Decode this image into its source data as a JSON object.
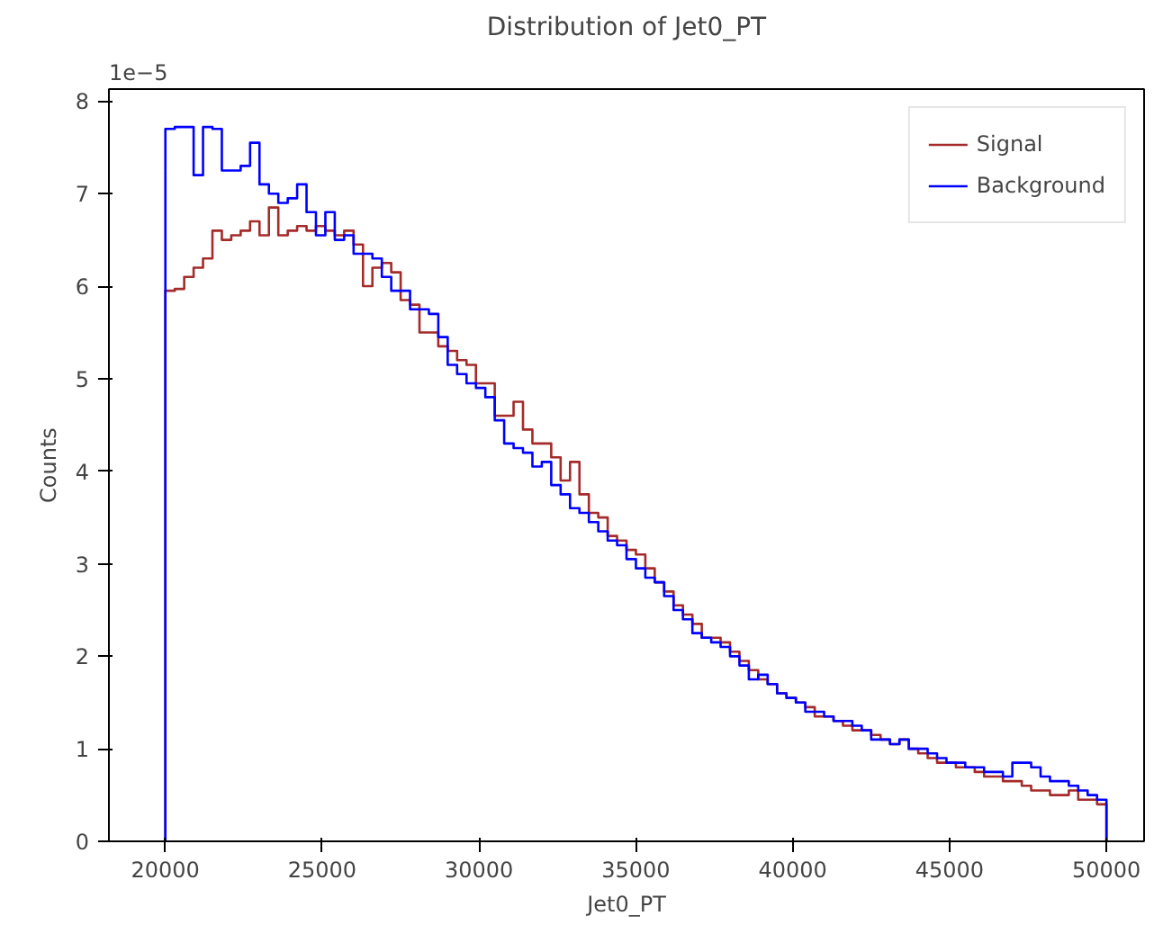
{
  "chart_data": {
    "type": "histogram",
    "title": "Distribution of Jet0_PT",
    "xlabel": "Jet0_PT",
    "ylabel": "Counts",
    "annotations": [
      "1e−5"
    ],
    "bins": [
      20000,
      20300,
      20600,
      20900,
      21200,
      21500,
      21800,
      22100,
      22400,
      22700,
      23000,
      23300,
      23600,
      23900,
      24200,
      24500,
      24800,
      25100,
      25400,
      25700,
      26000,
      26300,
      26600,
      26900,
      27200,
      27500,
      27800,
      28100,
      28400,
      28700,
      29000,
      29300,
      29600,
      29900,
      30200,
      30500,
      30800,
      31100,
      31400,
      31700,
      32000,
      32300,
      32600,
      32900,
      33200,
      33500,
      33800,
      34100,
      34400,
      34700,
      35000,
      35300,
      35600,
      35900,
      36200,
      36500,
      36800,
      37100,
      37400,
      37700,
      38000,
      38300,
      38600,
      38900,
      39200,
      39500,
      39800,
      40100,
      40400,
      40700,
      41000,
      41300,
      41600,
      41900,
      42200,
      42500,
      42800,
      43100,
      43400,
      43700,
      44000,
      44300,
      44600,
      44900,
      45200,
      45500,
      45800,
      46100,
      46400,
      46700,
      47000,
      47300,
      47600,
      47900,
      48200,
      48500,
      48800,
      49100,
      49400,
      49700,
      50000
    ],
    "series": [
      {
        "name": "Signal",
        "color": "#a52a2a",
        "values": [
          5.95,
          5.97,
          6.1,
          6.2,
          6.3,
          6.6,
          6.5,
          6.55,
          6.6,
          6.7,
          6.55,
          6.85,
          6.55,
          6.6,
          6.65,
          6.6,
          6.65,
          6.6,
          6.55,
          6.6,
          6.45,
          6.0,
          6.2,
          6.25,
          6.15,
          5.85,
          5.8,
          5.5,
          5.5,
          5.35,
          5.3,
          5.2,
          5.15,
          4.95,
          4.95,
          4.6,
          4.6,
          4.75,
          4.45,
          4.3,
          4.3,
          4.15,
          3.9,
          4.1,
          3.75,
          3.55,
          3.5,
          3.3,
          3.25,
          3.15,
          3.1,
          2.95,
          2.8,
          2.7,
          2.55,
          2.45,
          2.35,
          2.2,
          2.2,
          2.15,
          2.05,
          1.95,
          1.85,
          1.75,
          1.7,
          1.6,
          1.55,
          1.5,
          1.45,
          1.35,
          1.35,
          1.3,
          1.25,
          1.2,
          1.2,
          1.15,
          1.1,
          1.05,
          1.1,
          1.0,
          0.95,
          0.9,
          0.85,
          0.85,
          0.8,
          0.8,
          0.75,
          0.7,
          0.7,
          0.65,
          0.65,
          0.6,
          0.55,
          0.55,
          0.5,
          0.5,
          0.55,
          0.45,
          0.45,
          0.4
        ]
      },
      {
        "name": "Background",
        "color": "#0000ff",
        "values": [
          7.7,
          7.72,
          7.72,
          7.2,
          7.72,
          7.7,
          7.25,
          7.25,
          7.3,
          7.55,
          7.1,
          7.0,
          6.9,
          6.95,
          7.1,
          6.8,
          6.55,
          6.8,
          6.5,
          6.55,
          6.35,
          6.35,
          6.3,
          6.1,
          5.95,
          5.95,
          5.75,
          5.75,
          5.7,
          5.45,
          5.15,
          5.05,
          4.95,
          4.9,
          4.8,
          4.55,
          4.3,
          4.25,
          4.2,
          4.05,
          4.1,
          3.85,
          3.75,
          3.6,
          3.55,
          3.45,
          3.35,
          3.25,
          3.2,
          3.05,
          2.95,
          2.85,
          2.8,
          2.65,
          2.5,
          2.4,
          2.25,
          2.2,
          2.15,
          2.1,
          2.0,
          1.9,
          1.75,
          1.8,
          1.7,
          1.6,
          1.55,
          1.5,
          1.4,
          1.4,
          1.35,
          1.3,
          1.3,
          1.25,
          1.2,
          1.1,
          1.1,
          1.05,
          1.1,
          1.0,
          1.0,
          0.95,
          0.9,
          0.85,
          0.85,
          0.8,
          0.8,
          0.75,
          0.75,
          0.7,
          0.85,
          0.85,
          0.8,
          0.7,
          0.65,
          0.65,
          0.6,
          0.55,
          0.5,
          0.45
        ]
      }
    ],
    "xlim": [
      18200,
      51200
    ],
    "ylim": [
      0,
      8.13
    ],
    "xticks": [
      20000,
      25000,
      30000,
      35000,
      40000,
      45000,
      50000
    ],
    "yticks": [
      0,
      1,
      2,
      3,
      4,
      5,
      6,
      7,
      8
    ],
    "legend": "top right",
    "grid": false
  }
}
